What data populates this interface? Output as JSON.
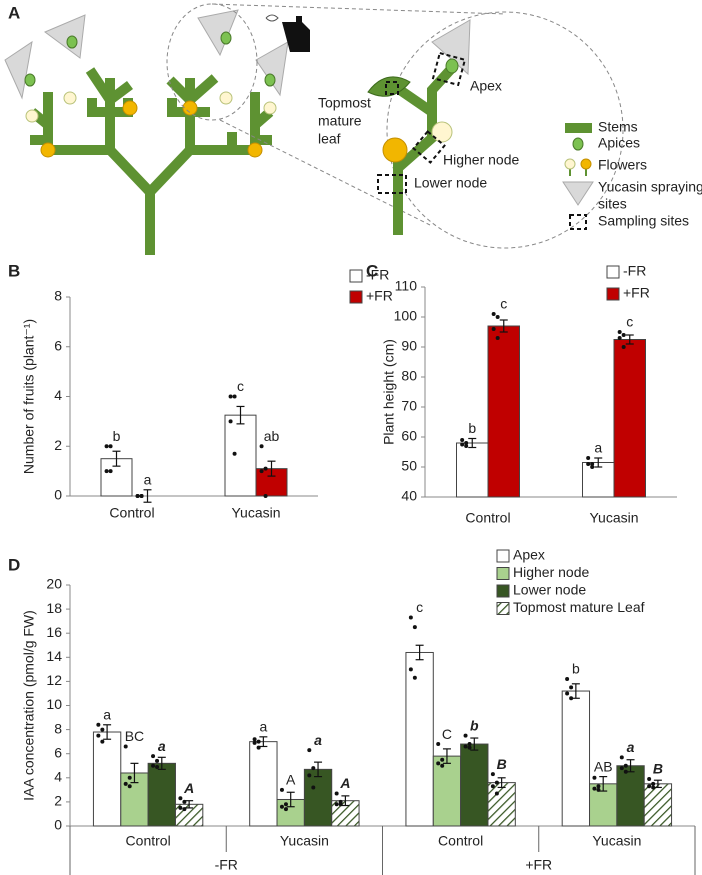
{
  "diagram": {
    "panel": "A",
    "labels": {
      "apex": "Apex",
      "leaf": [
        "Topmost",
        "mature",
        "leaf"
      ],
      "higher": "Higher node",
      "lower": "Lower node"
    },
    "legend": {
      "stems": "Stems",
      "apices": "Apices",
      "flowers": "Flowers",
      "spraying": [
        "Yucasin spraying",
        "sites"
      ],
      "sampling": "Sampling sites"
    }
  },
  "chart_data": [
    {
      "type": "bar",
      "panel": "B",
      "ylabel": "Number of fruits (plant⁻¹)",
      "legend": "top-right",
      "categories": [
        "Control",
        "Yucasin"
      ],
      "ylim": [
        0,
        8
      ],
      "yticks": [
        0,
        2,
        4,
        6,
        8
      ],
      "series": [
        {
          "name": "-FR",
          "color": "#ffffff",
          "values": [
            1.5,
            3.25
          ],
          "errors": [
            0.3,
            0.35
          ],
          "letters": [
            "b",
            "c"
          ],
          "points": [
            [
              2,
              2,
              1,
              1
            ],
            [
              4,
              4,
              3,
              1.7
            ]
          ]
        },
        {
          "name": "+FR",
          "color": "#c00000",
          "values": [
            0,
            1.1
          ],
          "errors": [
            0.25,
            0.3
          ],
          "letters": [
            "a",
            "ab"
          ],
          "points": [
            [
              0,
              0,
              0,
              0
            ],
            [
              2,
              1.1,
              1,
              0
            ]
          ]
        }
      ]
    },
    {
      "type": "bar",
      "panel": "C",
      "ylabel": "Plant height (cm)",
      "legend": "top-right",
      "categories": [
        "Control",
        "Yucasin"
      ],
      "ylim": [
        40,
        110
      ],
      "yticks": [
        40,
        50,
        60,
        70,
        80,
        90,
        100,
        110
      ],
      "series": [
        {
          "name": "-FR",
          "color": "#ffffff",
          "values": [
            58,
            51.5
          ],
          "errors": [
            1.5,
            1.5
          ],
          "letters": [
            "b",
            "a"
          ],
          "points": [
            [
              59,
              58,
              57.5,
              57
            ],
            [
              53,
              51,
              51,
              50
            ]
          ]
        },
        {
          "name": "+FR",
          "color": "#c00000",
          "values": [
            97,
            92.5
          ],
          "errors": [
            2,
            1.5
          ],
          "letters": [
            "c",
            "c"
          ],
          "points": [
            [
              101,
              100,
              96,
              93
            ],
            [
              95,
              94,
              93,
              90
            ]
          ]
        }
      ]
    },
    {
      "type": "bar",
      "panel": "D",
      "ylabel": "IAA concentration (pmol/g FW)",
      "legend": "top-right",
      "categories": [
        "Control",
        "Yucasin",
        "Control",
        "Yucasin"
      ],
      "groups": [
        "-FR",
        "+FR"
      ],
      "ylim": [
        0,
        20
      ],
      "yticks": [
        0,
        2,
        4,
        6,
        8,
        10,
        12,
        14,
        16,
        18,
        20
      ],
      "series": [
        {
          "name": "Apex",
          "color": "#ffffff",
          "values": [
            7.8,
            7.0,
            14.4,
            11.2
          ],
          "errors": [
            0.6,
            0.4,
            0.6,
            0.6
          ],
          "letters": [
            "a",
            "a",
            "c",
            "b"
          ],
          "points": [
            [
              8.4,
              8,
              7.5,
              7
            ],
            [
              7.2,
              7,
              6.9,
              6.5
            ],
            [
              17.3,
              16.5,
              13,
              12.3
            ],
            [
              12.2,
              11.5,
              11,
              10.6
            ]
          ]
        },
        {
          "name": "Higher node",
          "color": "#a9d18e",
          "values": [
            4.4,
            2.2,
            5.8,
            3.5
          ],
          "errors": [
            0.8,
            0.6,
            0.6,
            0.6
          ],
          "letters": [
            "BC",
            "A",
            "C",
            "AB"
          ],
          "points": [
            [
              6.6,
              4,
              3.5,
              3.3
            ],
            [
              3,
              1.8,
              1.6,
              1.4
            ],
            [
              6.8,
              5.5,
              5.2,
              5.0
            ],
            [
              4,
              3.3,
              3.1,
              3.0
            ]
          ]
        },
        {
          "name": "Lower node",
          "color": "#375623",
          "values": [
            5.2,
            4.7,
            6.8,
            5.0
          ],
          "errors": [
            0.5,
            0.6,
            0.5,
            0.5
          ],
          "letters": [
            "a",
            "a",
            "b",
            "a"
          ],
          "letter_style": "bold-italic",
          "points": [
            [
              5.8,
              5.4,
              5,
              4.9
            ],
            [
              6.3,
              4.8,
              4.2,
              3.2
            ],
            [
              7.5,
              6.8,
              6.6,
              6.5
            ],
            [
              5.7,
              5,
              4.8,
              4.5
            ]
          ]
        },
        {
          "name": "Topmost mature Leaf",
          "color": "#375623",
          "pattern": "hatch",
          "values": [
            1.8,
            2.1,
            3.6,
            3.5
          ],
          "errors": [
            0.3,
            0.4,
            0.4,
            0.3
          ],
          "letters": [
            "A",
            "A",
            "B",
            "B"
          ],
          "letter_style": "bold-italic",
          "points": [
            [
              2.3,
              2.0,
              1.5,
              1.4
            ],
            [
              2.7,
              2,
              1.8,
              1.8
            ],
            [
              4.3,
              3.6,
              3.3,
              2.7
            ],
            [
              3.9,
              3.5,
              3.3,
              3.2
            ]
          ]
        }
      ]
    }
  ]
}
